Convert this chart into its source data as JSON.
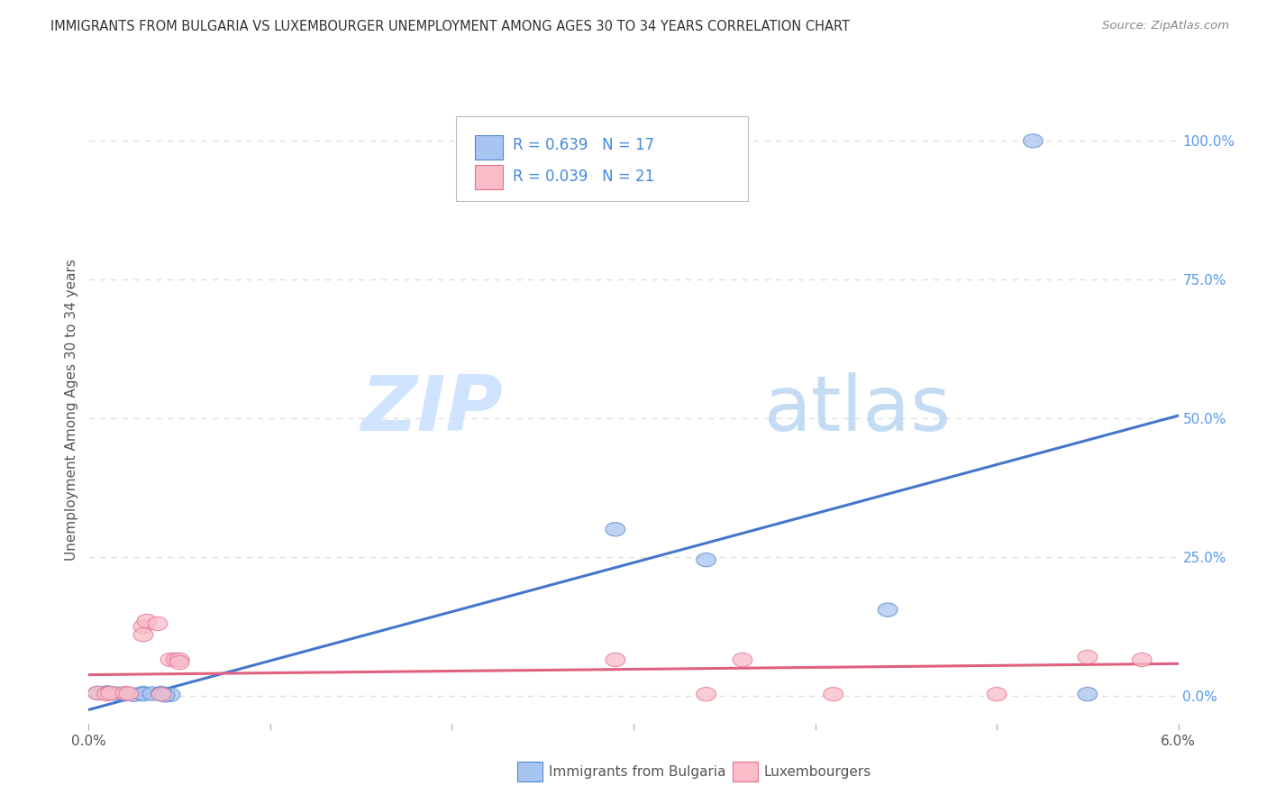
{
  "title": "IMMIGRANTS FROM BULGARIA VS LUXEMBOURGER UNEMPLOYMENT AMONG AGES 30 TO 34 YEARS CORRELATION CHART",
  "source": "Source: ZipAtlas.com",
  "ylabel": "Unemployment Among Ages 30 to 34 years",
  "y_tick_labels": [
    "0.0%",
    "25.0%",
    "50.0%",
    "75.0%",
    "100.0%"
  ],
  "y_tick_values": [
    0.0,
    0.25,
    0.5,
    0.75,
    1.0
  ],
  "xlim": [
    0.0,
    0.06
  ],
  "ylim": [
    -0.05,
    1.08
  ],
  "legend_r_blue": "R = 0.639",
  "legend_n_blue": "N = 17",
  "legend_r_pink": "R = 0.039",
  "legend_n_pink": "N = 21",
  "watermark_zip": "ZIP",
  "watermark_atlas": "atlas",
  "blue_scatter": [
    [
      0.0005,
      0.005
    ],
    [
      0.001,
      0.006
    ],
    [
      0.0015,
      0.004
    ],
    [
      0.002,
      0.003
    ],
    [
      0.0025,
      0.002
    ],
    [
      0.003,
      0.005
    ],
    [
      0.003,
      0.003
    ],
    [
      0.0035,
      0.004
    ],
    [
      0.004,
      0.005
    ],
    [
      0.004,
      0.003
    ],
    [
      0.0045,
      0.002
    ],
    [
      0.0042,
      0.001
    ],
    [
      0.029,
      0.3
    ],
    [
      0.034,
      0.245
    ],
    [
      0.044,
      0.155
    ],
    [
      0.052,
      1.0
    ],
    [
      0.055,
      0.003
    ]
  ],
  "pink_scatter": [
    [
      0.0005,
      0.005
    ],
    [
      0.001,
      0.003
    ],
    [
      0.0012,
      0.005
    ],
    [
      0.002,
      0.005
    ],
    [
      0.0022,
      0.004
    ],
    [
      0.003,
      0.125
    ],
    [
      0.003,
      0.11
    ],
    [
      0.0032,
      0.135
    ],
    [
      0.0038,
      0.13
    ],
    [
      0.004,
      0.003
    ],
    [
      0.0045,
      0.065
    ],
    [
      0.0048,
      0.065
    ],
    [
      0.005,
      0.065
    ],
    [
      0.005,
      0.06
    ],
    [
      0.029,
      0.065
    ],
    [
      0.034,
      0.003
    ],
    [
      0.036,
      0.065
    ],
    [
      0.041,
      0.003
    ],
    [
      0.05,
      0.003
    ],
    [
      0.055,
      0.07
    ],
    [
      0.058,
      0.065
    ]
  ],
  "blue_line_x": [
    0.0,
    0.06
  ],
  "blue_line_y": [
    -0.025,
    0.505
  ],
  "pink_line_x": [
    0.0,
    0.06
  ],
  "pink_line_y": [
    0.038,
    0.058
  ],
  "blue_color": "#A8C4F0",
  "blue_edge_color": "#5588CC",
  "blue_line_color": "#4477CC",
  "pink_color": "#F9BCC8",
  "pink_edge_color": "#E87090",
  "pink_line_color": "#E06080",
  "legend_text_color": "#4488DD",
  "right_axis_color": "#5599EE",
  "bg_color": "#FFFFFF",
  "grid_color": "#DDDDDD",
  "title_color": "#333333",
  "source_color": "#888888",
  "ylabel_color": "#555555",
  "xlabel_color": "#555555"
}
